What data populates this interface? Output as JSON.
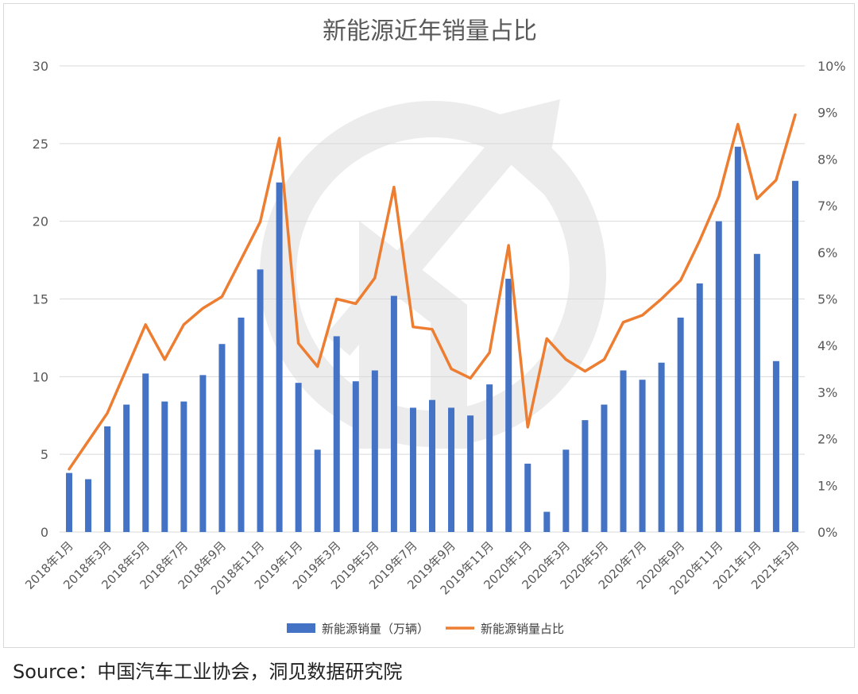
{
  "chart_data": {
    "type": "bar+line",
    "title": "新能源近年销量占比",
    "categories": [
      "2018年1月",
      "2018年2月",
      "2018年3月",
      "2018年4月",
      "2018年5月",
      "2018年6月",
      "2018年7月",
      "2018年8月",
      "2018年9月",
      "2018年10月",
      "2018年11月",
      "2018年12月",
      "2019年1月",
      "2019年2月",
      "2019年3月",
      "2019年4月",
      "2019年5月",
      "2019年6月",
      "2019年7月",
      "2019年8月",
      "2019年9月",
      "2019年10月",
      "2019年11月",
      "2019年12月",
      "2020年1月",
      "2020年2月",
      "2020年3月",
      "2020年4月",
      "2020年5月",
      "2020年6月",
      "2020年7月",
      "2020年8月",
      "2020年9月",
      "2020年10月",
      "2020年11月",
      "2020年12月",
      "2021年1月",
      "2021年2月",
      "2021年3月"
    ],
    "x_tick_labels": [
      "2018年1月",
      "2018年3月",
      "2018年5月",
      "2018年7月",
      "2018年9月",
      "2018年11月",
      "2019年1月",
      "2019年3月",
      "2019年5月",
      "2019年7月",
      "2019年9月",
      "2019年11月",
      "2020年1月",
      "2020年3月",
      "2020年5月",
      "2020年7月",
      "2020年9月",
      "2020年11月",
      "2021年1月",
      "2021年3月"
    ],
    "series": [
      {
        "name": "新能源销量（万辆）",
        "type": "bar",
        "axis": "left",
        "color": "#4472c4",
        "values": [
          3.8,
          3.4,
          6.8,
          8.2,
          10.2,
          8.4,
          8.4,
          10.1,
          12.1,
          13.8,
          16.9,
          22.5,
          9.6,
          5.3,
          12.6,
          9.7,
          10.4,
          15.2,
          8.0,
          8.5,
          8.0,
          7.5,
          9.5,
          16.3,
          4.4,
          1.3,
          5.3,
          7.2,
          8.2,
          10.4,
          9.8,
          10.9,
          13.8,
          16.0,
          20.0,
          24.8,
          17.9,
          11.0,
          22.6
        ]
      },
      {
        "name": "新能源销量占比",
        "type": "line",
        "axis": "right",
        "color": "#ed7d31",
        "values": [
          1.35,
          1.95,
          2.55,
          3.5,
          4.45,
          3.7,
          4.45,
          4.8,
          5.05,
          5.85,
          6.65,
          8.45,
          4.05,
          3.55,
          5.0,
          4.9,
          5.45,
          7.4,
          4.4,
          4.35,
          3.5,
          3.3,
          3.85,
          6.15,
          2.25,
          4.15,
          3.7,
          3.45,
          3.7,
          4.5,
          4.65,
          5.0,
          5.4,
          6.25,
          7.2,
          8.75,
          7.15,
          7.55,
          8.95
        ]
      }
    ],
    "yleft": {
      "lim": [
        0,
        30
      ],
      "ticks": [
        "0",
        "5",
        "10",
        "15",
        "20",
        "25",
        "30"
      ]
    },
    "yright": {
      "lim": [
        0,
        10
      ],
      "ticks": [
        "0%",
        "1%",
        "2%",
        "3%",
        "4%",
        "5%",
        "6%",
        "7%",
        "8%",
        "9%",
        "10%"
      ]
    },
    "grid": true,
    "legend_position": "bottom",
    "colors": {
      "gridline": "#d9d9d9",
      "axis_text": "#595959",
      "title": "#595959"
    }
  },
  "source": "Source：中国汽车工业协会，洞见数据研究院"
}
